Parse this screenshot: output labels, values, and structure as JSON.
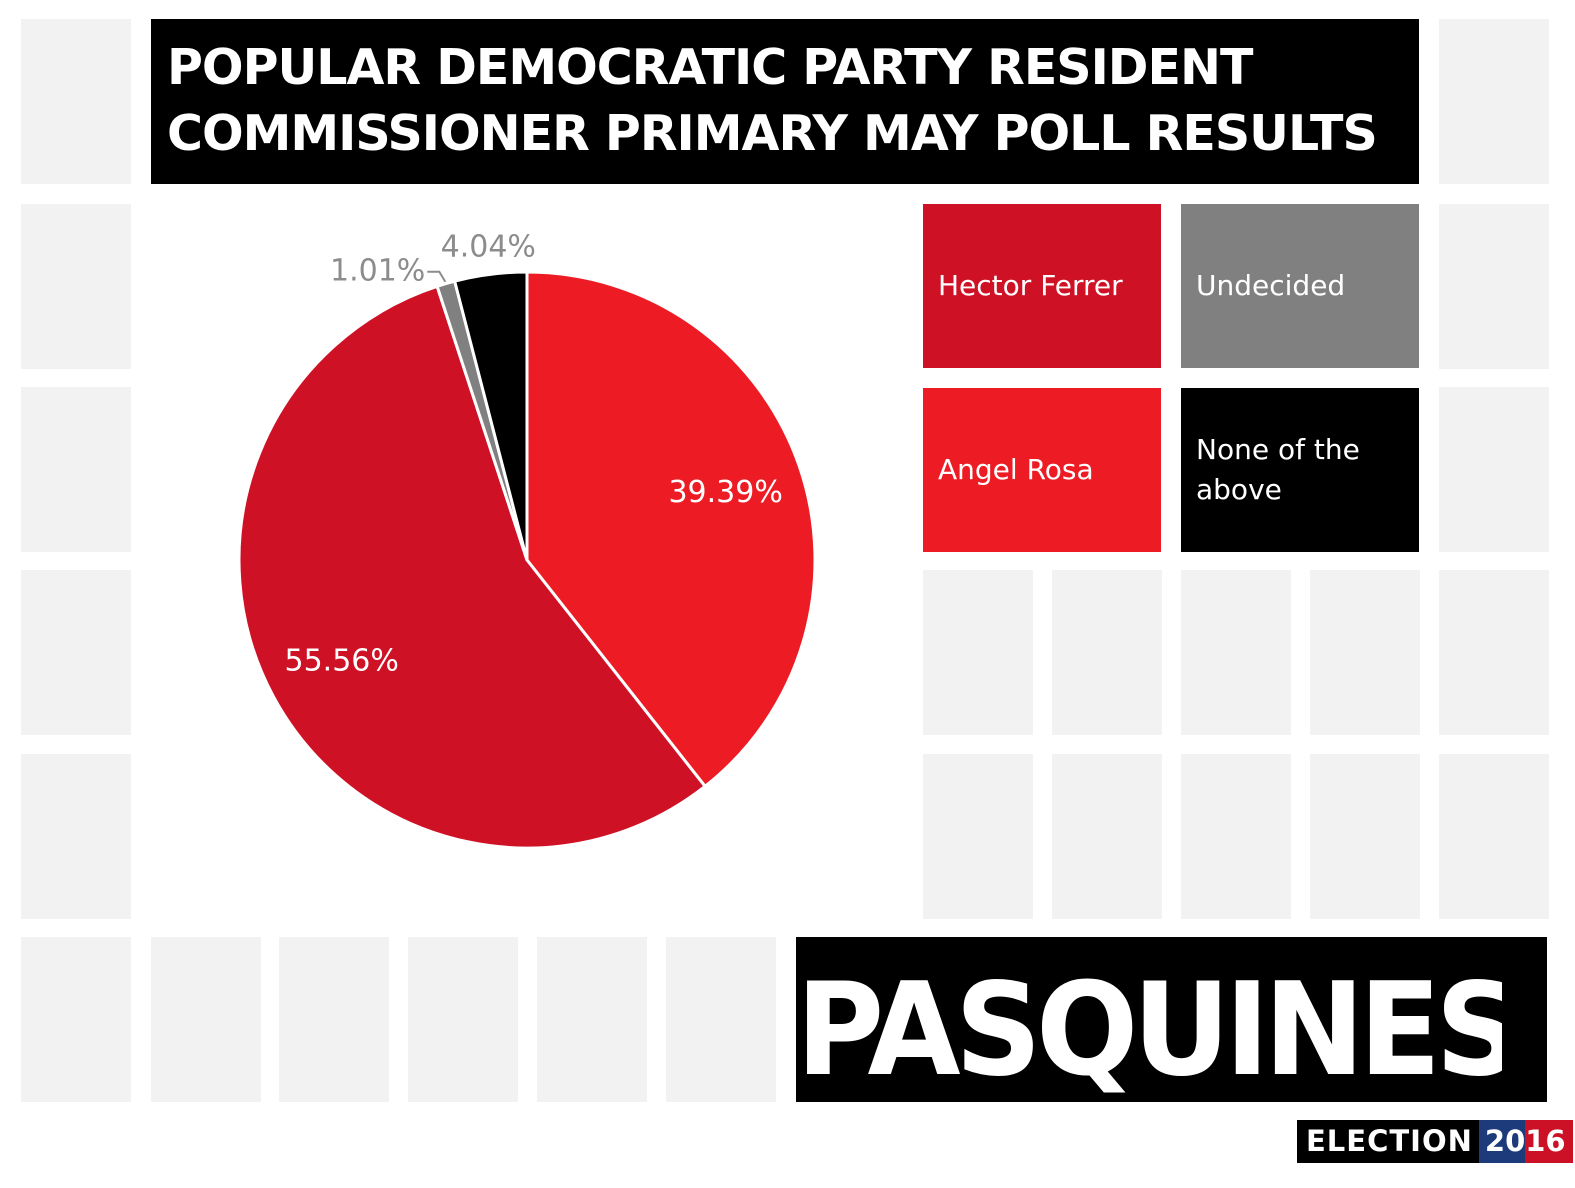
{
  "title": {
    "line1": "POPULAR DEMOCRATIC PARTY RESIDENT",
    "line2": "COMMISSIONER PRIMARY MAY POLL RESULTS"
  },
  "chart_data": {
    "type": "pie",
    "title": "POPULAR DEMOCRATIC PARTY RESIDENT COMMISSIONER PRIMARY MAY POLL RESULTS",
    "slices": [
      {
        "name": "Angel Rosa",
        "value": 39.39,
        "label": "39.39%",
        "color": "#ed1c24"
      },
      {
        "name": "Hector Ferrer",
        "value": 55.56,
        "label": "55.56%",
        "color": "#cf1126"
      },
      {
        "name": "Undecided",
        "value": 1.01,
        "label": "1.01%",
        "color": "#808080"
      },
      {
        "name": "None of the above",
        "value": 4.04,
        "label": "4.04%",
        "color": "#000000"
      }
    ],
    "legend_position": "right",
    "start": "12 o'clock, clockwise"
  },
  "legend": [
    {
      "label": "Hector Ferrer",
      "color": "#cf1126"
    },
    {
      "label": "Undecided",
      "color": "#808080"
    },
    {
      "label": "Angel Rosa",
      "color": "#ed1c24"
    },
    {
      "label": "None of the above",
      "color": "#000000"
    }
  ],
  "branding": {
    "logo": "PASQUINES",
    "election_word": "ELECTION",
    "year_part1": "20",
    "year_part2": "16",
    "year_colors": [
      "#1d3a7a",
      "#cc1126"
    ]
  },
  "colors": {
    "tile": "#f2f2f2",
    "title_bg": "#000000"
  }
}
